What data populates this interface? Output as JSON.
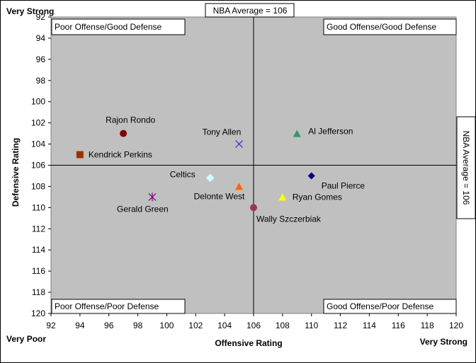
{
  "chart_data": {
    "type": "scatter",
    "xlabel": "Offensive Rating",
    "ylabel": "Defensive Rating",
    "xlim": [
      92,
      120
    ],
    "ylim": [
      92,
      120
    ],
    "y_inverted": true,
    "x_ticks": [
      92,
      94,
      96,
      98,
      100,
      102,
      104,
      106,
      108,
      110,
      112,
      114,
      116,
      118,
      120
    ],
    "y_ticks": [
      92,
      94,
      96,
      98,
      100,
      102,
      104,
      106,
      108,
      110,
      112,
      114,
      116,
      118,
      120
    ],
    "grid": false,
    "plot_background": "#c0c0c0",
    "reference_lines": {
      "x": 106,
      "y": 106
    },
    "corner_labels": {
      "top_left": "Very Strong",
      "bottom_left": "Very Poor",
      "bottom_right": "Very Strong"
    },
    "average_labels": {
      "top": "NBA Average = 106",
      "right": "NBA Average = 106"
    },
    "quadrant_labels": {
      "top_left": "Poor Offense/Good Defense",
      "top_right": "Good Offense/Good Defense",
      "bottom_left": "Poor Offense/Poor Defense",
      "bottom_right": "Good Offense/Poor Defense"
    },
    "points": [
      {
        "name": "Rajon Rondo",
        "x": 97,
        "y": 103,
        "marker": "circle",
        "color": "#800000"
      },
      {
        "name": "Kendrick Perkins",
        "x": 94,
        "y": 105,
        "marker": "square",
        "color": "#993300"
      },
      {
        "name": "Tony Allen",
        "x": 105,
        "y": 104,
        "marker": "x",
        "color": "#3333cc"
      },
      {
        "name": "Al Jefferson",
        "x": 109,
        "y": 103,
        "marker": "triangle",
        "color": "#339966"
      },
      {
        "name": "Paul Pierce",
        "x": 110,
        "y": 107,
        "marker": "diamond",
        "color": "#000080"
      },
      {
        "name": "Celtics",
        "x": 103,
        "y": 107.2,
        "marker": "diamond",
        "color": "#ccffff"
      },
      {
        "name": "Delonte West",
        "x": 105,
        "y": 108,
        "marker": "triangle",
        "color": "#ff6600"
      },
      {
        "name": "Ryan Gomes",
        "x": 108,
        "y": 109,
        "marker": "triangle",
        "color": "#ffff00"
      },
      {
        "name": "Gerald Green",
        "x": 99,
        "y": 109,
        "marker": "asterisk",
        "color": "#800080"
      },
      {
        "name": "Wally Szczerbiak",
        "x": 106,
        "y": 110,
        "marker": "circle",
        "color": "#993366"
      }
    ]
  }
}
